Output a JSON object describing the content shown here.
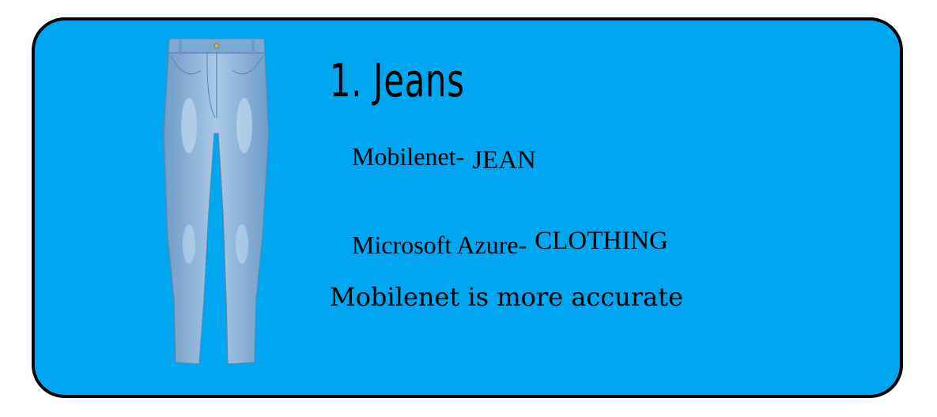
{
  "card": {
    "background": "#00a6f0",
    "border_color": "#000000",
    "image": {
      "subject": "jeans",
      "icon": "jeans-image",
      "color": "#8fb6d9"
    },
    "title": "1. Jeans",
    "results": [
      {
        "label": "Mobilenet-",
        "value": "JEAN"
      },
      {
        "label": "Microsoft Azure-",
        "value": "CLOTHING"
      }
    ],
    "conclusion": "Mobilenet is more accurate"
  }
}
